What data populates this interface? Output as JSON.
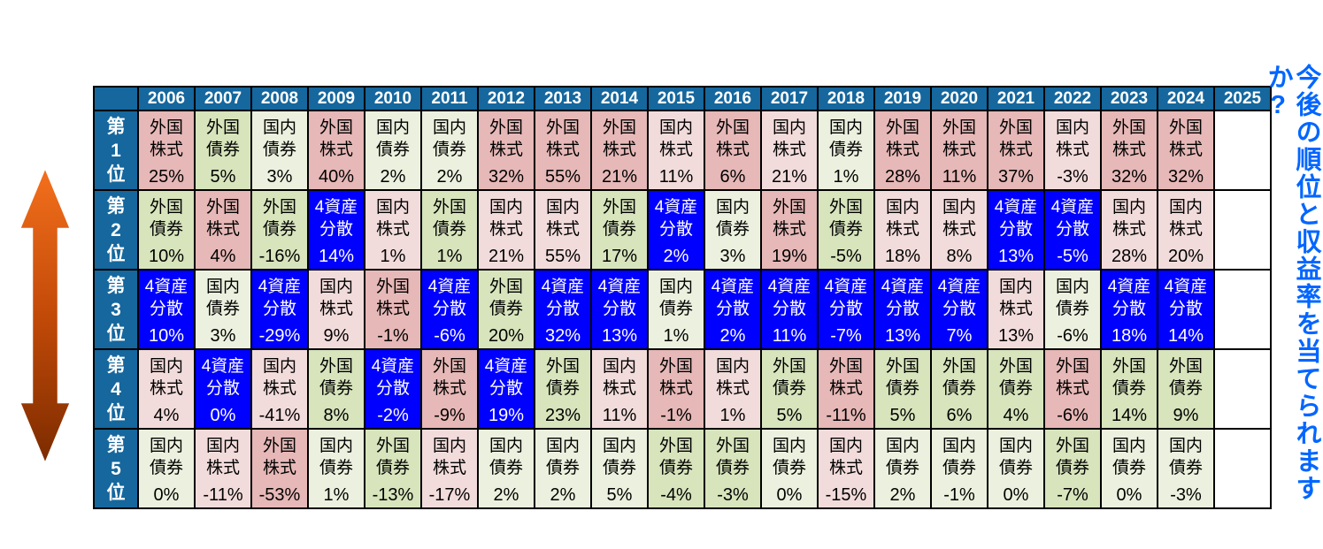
{
  "colors": {
    "header_bg": "#15679D",
    "header_text": "#FFFFFF",
    "border": "#000000",
    "cell_text": "#000000",
    "foreign_stock_bg": "#E6B8B7",
    "domestic_stock_bg": "#F2DCDB",
    "foreign_bond_bg": "#D7E4BC",
    "domestic_bond_bg": "#EBF1DE",
    "balanced_bg": "#0000FF",
    "balanced_text": "#FFFFFF",
    "side_note": "#0066FF",
    "arrow_top": "#F4701D",
    "arrow_mid": "#C24A08",
    "arrow_bottom": "#7B2B00"
  },
  "side_note": "今後の順位と収益率を当てられますか?",
  "asset_classes": {
    "fs": {
      "name": "外国株式",
      "label": "外国\n株式"
    },
    "ds": {
      "name": "国内株式",
      "label": "国内\n株式"
    },
    "fb": {
      "name": "外国債券",
      "label": "外国\n債券"
    },
    "db": {
      "name": "国内債券",
      "label": "国内\n債券"
    },
    "mix": {
      "name": "4資産分散",
      "label": "4資産\n分散"
    }
  },
  "chart_data": {
    "type": "table",
    "years": [
      "2006",
      "2007",
      "2008",
      "2009",
      "2010",
      "2011",
      "2012",
      "2013",
      "2014",
      "2015",
      "2016",
      "2017",
      "2018",
      "2019",
      "2020",
      "2021",
      "2022",
      "2023",
      "2024",
      "2025"
    ],
    "note": "2025 column is empty",
    "rows": [
      {
        "rank": "第1位",
        "rank_display": "第\n1\n位",
        "cells": [
          {
            "asset": "fs",
            "value": "25%"
          },
          {
            "asset": "fb",
            "value": "5%"
          },
          {
            "asset": "db",
            "value": "3%"
          },
          {
            "asset": "fs",
            "value": "40%"
          },
          {
            "asset": "db",
            "value": "2%"
          },
          {
            "asset": "db",
            "value": "2%"
          },
          {
            "asset": "fs",
            "value": "32%"
          },
          {
            "asset": "fs",
            "value": "55%"
          },
          {
            "asset": "fs",
            "value": "21%"
          },
          {
            "asset": "ds",
            "value": "11%"
          },
          {
            "asset": "fs",
            "value": "6%"
          },
          {
            "asset": "ds",
            "value": "21%"
          },
          {
            "asset": "db",
            "value": "1%"
          },
          {
            "asset": "fs",
            "value": "28%"
          },
          {
            "asset": "fs",
            "value": "11%"
          },
          {
            "asset": "fs",
            "value": "37%"
          },
          {
            "asset": "ds",
            "value": "-3%"
          },
          {
            "asset": "fs",
            "value": "32%"
          },
          {
            "asset": "fs",
            "value": "32%"
          }
        ]
      },
      {
        "rank": "第2位",
        "rank_display": "第\n2\n位",
        "cells": [
          {
            "asset": "fb",
            "value": "10%"
          },
          {
            "asset": "fs",
            "value": "4%"
          },
          {
            "asset": "fb",
            "value": "-16%"
          },
          {
            "asset": "mix",
            "value": "14%"
          },
          {
            "asset": "ds",
            "value": "1%"
          },
          {
            "asset": "fb",
            "value": "1%"
          },
          {
            "asset": "ds",
            "value": "21%"
          },
          {
            "asset": "ds",
            "value": "55%"
          },
          {
            "asset": "fb",
            "value": "17%"
          },
          {
            "asset": "mix",
            "value": "2%"
          },
          {
            "asset": "db",
            "value": "3%"
          },
          {
            "asset": "fs",
            "value": "19%"
          },
          {
            "asset": "fb",
            "value": "-5%"
          },
          {
            "asset": "ds",
            "value": "18%"
          },
          {
            "asset": "ds",
            "value": "8%"
          },
          {
            "asset": "mix",
            "value": "13%"
          },
          {
            "asset": "mix",
            "value": "-5%"
          },
          {
            "asset": "ds",
            "value": "28%"
          },
          {
            "asset": "ds",
            "value": "20%"
          }
        ]
      },
      {
        "rank": "第3位",
        "rank_display": "第\n3\n位",
        "cells": [
          {
            "asset": "mix",
            "value": "10%"
          },
          {
            "asset": "db",
            "value": "3%"
          },
          {
            "asset": "mix",
            "value": "-29%"
          },
          {
            "asset": "ds",
            "value": "9%"
          },
          {
            "asset": "fs",
            "value": "-1%"
          },
          {
            "asset": "mix",
            "value": "-6%"
          },
          {
            "asset": "fb",
            "value": "20%"
          },
          {
            "asset": "mix",
            "value": "32%"
          },
          {
            "asset": "mix",
            "value": "13%"
          },
          {
            "asset": "db",
            "value": "1%"
          },
          {
            "asset": "mix",
            "value": "2%"
          },
          {
            "asset": "mix",
            "value": "11%"
          },
          {
            "asset": "mix",
            "value": "-7%"
          },
          {
            "asset": "mix",
            "value": "13%"
          },
          {
            "asset": "mix",
            "value": "7%"
          },
          {
            "asset": "ds",
            "value": "13%"
          },
          {
            "asset": "db",
            "value": "-6%"
          },
          {
            "asset": "mix",
            "value": "18%"
          },
          {
            "asset": "mix",
            "value": "14%"
          }
        ]
      },
      {
        "rank": "第4位",
        "rank_display": "第\n4\n位",
        "cells": [
          {
            "asset": "ds",
            "value": "4%"
          },
          {
            "asset": "mix",
            "value": "0%"
          },
          {
            "asset": "ds",
            "value": "-41%"
          },
          {
            "asset": "fb",
            "value": "8%"
          },
          {
            "asset": "mix",
            "value": "-2%"
          },
          {
            "asset": "fs",
            "value": "-9%"
          },
          {
            "asset": "mix",
            "value": "19%"
          },
          {
            "asset": "fb",
            "value": "23%"
          },
          {
            "asset": "ds",
            "value": "11%"
          },
          {
            "asset": "fs",
            "value": "-1%"
          },
          {
            "asset": "ds",
            "value": "1%"
          },
          {
            "asset": "fb",
            "value": "5%"
          },
          {
            "asset": "fs",
            "value": "-11%"
          },
          {
            "asset": "fb",
            "value": "5%"
          },
          {
            "asset": "fb",
            "value": "6%"
          },
          {
            "asset": "fb",
            "value": "4%"
          },
          {
            "asset": "fs",
            "value": "-6%"
          },
          {
            "asset": "fb",
            "value": "14%"
          },
          {
            "asset": "fb",
            "value": "9%"
          }
        ]
      },
      {
        "rank": "第5位",
        "rank_display": "第\n5\n位",
        "cells": [
          {
            "asset": "db",
            "value": "0%"
          },
          {
            "asset": "ds",
            "value": "-11%"
          },
          {
            "asset": "fs",
            "value": "-53%"
          },
          {
            "asset": "db",
            "value": "1%"
          },
          {
            "asset": "fb",
            "value": "-13%"
          },
          {
            "asset": "ds",
            "value": "-17%"
          },
          {
            "asset": "db",
            "value": "2%"
          },
          {
            "asset": "db",
            "value": "2%"
          },
          {
            "asset": "db",
            "value": "5%"
          },
          {
            "asset": "fb",
            "value": "-4%"
          },
          {
            "asset": "fb",
            "value": "-3%"
          },
          {
            "asset": "db",
            "value": "0%"
          },
          {
            "asset": "ds",
            "value": "-15%"
          },
          {
            "asset": "db",
            "value": "2%"
          },
          {
            "asset": "db",
            "value": "-1%"
          },
          {
            "asset": "db",
            "value": "0%"
          },
          {
            "asset": "fb",
            "value": "-7%"
          },
          {
            "asset": "db",
            "value": "0%"
          },
          {
            "asset": "db",
            "value": "-3%"
          }
        ]
      }
    ]
  }
}
